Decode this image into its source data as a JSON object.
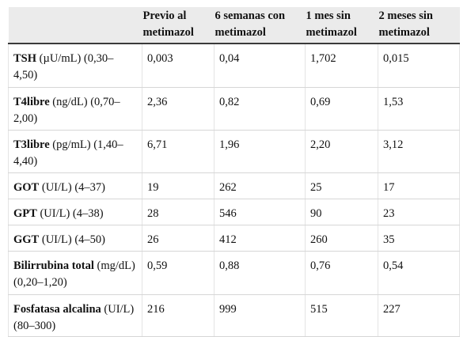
{
  "table": {
    "headers": [
      "",
      "Previo al metimazol",
      "6 semanas con metimazol",
      "1 mes sin metimazol",
      "2 meses sin metimazol"
    ],
    "rows": [
      {
        "name": "TSH",
        "unit": " (µU/mL) (0,30–4,50)",
        "values": [
          "0,003",
          "0,04",
          "1,702",
          "0,015"
        ]
      },
      {
        "name": "T4libre",
        "unit": " (ng/dL) (0,70–2,00)",
        "values": [
          "2,36",
          "0,82",
          "0,69",
          "1,53"
        ]
      },
      {
        "name": "T3libre",
        "unit": " (pg/mL) (1,40–4,40)",
        "values": [
          "6,71",
          "1,96",
          "2,20",
          "3,12"
        ]
      },
      {
        "name": "GOT",
        "unit": " (UI/L) (4–37)",
        "values": [
          "19",
          "262",
          "25",
          "17"
        ]
      },
      {
        "name": "GPT",
        "unit": " (UI/L) (4–38)",
        "values": [
          "28",
          "546",
          "90",
          "23"
        ]
      },
      {
        "name": "GGT",
        "unit": " (UI/L) (4–50)",
        "values": [
          "26",
          "412",
          "260",
          "35"
        ]
      },
      {
        "name": "Bilirrubina total",
        "unit": " (mg/dL) (0,20–1,20)",
        "values": [
          "0,59",
          "0,88",
          "0,76",
          "0,54"
        ]
      },
      {
        "name": "Fosfatasa alcalina",
        "unit": " (UI/L) (80–300)",
        "values": [
          "216",
          "999",
          "515",
          "227"
        ]
      }
    ]
  }
}
